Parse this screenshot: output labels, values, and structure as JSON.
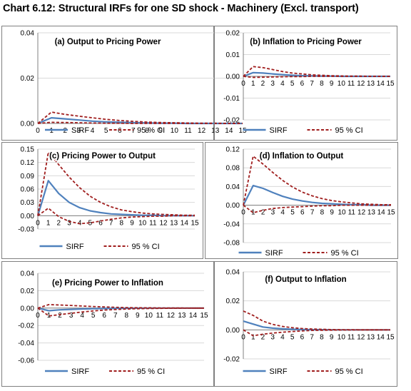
{
  "title": "Chart 6.12: Structural IRFs for one SD shock - Machinery (Excl. transport)",
  "colors": {
    "sirf": "#4f81bd",
    "ci": "#a01e1e",
    "border": "#808080",
    "grid": "#d9d9d9"
  },
  "chart_data": [
    {
      "type": "line",
      "title": "(a) Output to Pricing Power",
      "x": [
        0,
        1,
        2,
        3,
        4,
        5,
        6,
        7,
        8,
        9,
        10,
        11,
        12,
        13,
        14,
        15
      ],
      "x_tick_labels": [
        "0",
        "1",
        "2",
        "3",
        "4",
        "5",
        "6",
        "7",
        "8",
        "9",
        "10",
        "11",
        "12",
        "13",
        "14",
        "15"
      ],
      "ylim": [
        0,
        0.04
      ],
      "y_tick_labels": [
        "0.00",
        "0.02",
        "0.04"
      ],
      "grid": true,
      "legend_position": "bottom",
      "series": [
        {
          "name": "SIRF",
          "style": "solid",
          "values": [
            0,
            0.0025,
            0.002,
            0.0015,
            0.001,
            0.0007,
            0.0005,
            0.0003,
            0.0002,
            0.0001,
            0.0001,
            0,
            0,
            0,
            0,
            0
          ]
        },
        {
          "name": "95 % CI",
          "style": "dashed",
          "values": [
            0,
            0.005,
            0.004,
            0.0032,
            0.0025,
            0.0018,
            0.0013,
            0.0009,
            0.0006,
            0.0004,
            0.0003,
            0.0002,
            0.0001,
            0.0001,
            0,
            0
          ]
        },
        {
          "name": "95 % CI",
          "style": "dashed",
          "hide_legend": true,
          "values": [
            0,
            0.0005,
            0.0004,
            0.0003,
            0.0002,
            0.0001,
            0.0001,
            0,
            0,
            0,
            0,
            0,
            0,
            0,
            0,
            0
          ]
        }
      ]
    },
    {
      "type": "line",
      "title": "(b) Inflation to Pricing Power",
      "x": [
        0,
        1,
        2,
        3,
        4,
        5,
        6,
        7,
        8,
        9,
        10,
        11,
        12,
        13,
        14,
        15
      ],
      "x_tick_labels": [
        "0",
        "1",
        "2",
        "3",
        "4",
        "5",
        "6",
        "7",
        "8",
        "9",
        "10",
        "11",
        "12",
        "13",
        "14",
        "15"
      ],
      "ylim": [
        -0.02,
        0.02
      ],
      "y_tick_labels": [
        "-0.02",
        "-0.01",
        "0.00",
        "0.01",
        "0.02"
      ],
      "grid": true,
      "legend_position": "bottom",
      "series": [
        {
          "name": "SIRF",
          "style": "solid",
          "values": [
            0,
            0.0017,
            0.0015,
            0.0011,
            0.0008,
            0.0005,
            0.0003,
            0.0002,
            0.0001,
            0.0001,
            0,
            0,
            0,
            0,
            0,
            0
          ]
        },
        {
          "name": "95 % CI",
          "style": "dashed",
          "values": [
            0,
            0.0045,
            0.004,
            0.0031,
            0.0022,
            0.0015,
            0.0011,
            0.0007,
            0.0005,
            0.0003,
            0.0002,
            0.0001,
            0.0001,
            0,
            0,
            0
          ]
        },
        {
          "name": "95 % CI",
          "style": "dashed",
          "hide_legend": true,
          "values": [
            0,
            -0.0005,
            -0.0004,
            -0.0003,
            -0.0002,
            -0.0001,
            -0.0001,
            0,
            0,
            0,
            0,
            0,
            0,
            0,
            0,
            0
          ]
        }
      ]
    },
    {
      "type": "line",
      "title": "(c) Pricing Power to Output",
      "x": [
        0,
        1,
        2,
        3,
        4,
        5,
        6,
        7,
        8,
        9,
        10,
        11,
        12,
        13,
        14,
        15
      ],
      "x_tick_labels": [
        "0",
        "1",
        "2",
        "3",
        "4",
        "5",
        "6",
        "7",
        "8",
        "9",
        "10",
        "11",
        "12",
        "13",
        "14",
        "15"
      ],
      "ylim": [
        -0.03,
        0.15
      ],
      "y_tick_labels": [
        "-0.03",
        "0.00",
        "0.03",
        "0.06",
        "0.09",
        "0.12",
        "0.15"
      ],
      "grid": true,
      "legend_position": "bottom",
      "series": [
        {
          "name": "SIRF",
          "style": "solid",
          "values": [
            0,
            0.079,
            0.05,
            0.03,
            0.018,
            0.011,
            0.007,
            0.004,
            0.003,
            0.002,
            0.001,
            0.001,
            0,
            0,
            0,
            0
          ]
        },
        {
          "name": "95 % CI",
          "style": "dashed",
          "values": [
            0,
            0.143,
            0.115,
            0.087,
            0.063,
            0.044,
            0.03,
            0.02,
            0.013,
            0.009,
            0.006,
            0.004,
            0.003,
            0.002,
            0.001,
            0.001
          ]
        },
        {
          "name": "95 % CI",
          "style": "dashed",
          "hide_legend": true,
          "values": [
            0,
            0.017,
            -0.002,
            -0.013,
            -0.018,
            -0.016,
            -0.012,
            -0.008,
            -0.005,
            -0.003,
            -0.002,
            -0.001,
            -0.001,
            0,
            0,
            0
          ]
        }
      ]
    },
    {
      "type": "line",
      "title": "(d) Inflation to Output",
      "x": [
        0,
        1,
        2,
        3,
        4,
        5,
        6,
        7,
        8,
        9,
        10,
        11,
        12,
        13,
        14,
        15
      ],
      "x_tick_labels": [
        "0",
        "1",
        "2",
        "3",
        "4",
        "5",
        "6",
        "7",
        "8",
        "9",
        "10",
        "11",
        "12",
        "13",
        "14",
        "15"
      ],
      "ylim": [
        -0.08,
        0.12
      ],
      "y_tick_labels": [
        "-0.08",
        "-0.04",
        "0.00",
        "0.04",
        "0.08",
        "0.12"
      ],
      "grid": true,
      "legend_position": "bottom",
      "series": [
        {
          "name": "SIRF",
          "style": "solid",
          "values": [
            0,
            0.042,
            0.036,
            0.027,
            0.019,
            0.013,
            0.009,
            0.006,
            0.004,
            0.003,
            0.002,
            0.001,
            0.001,
            0,
            0,
            0
          ]
        },
        {
          "name": "95 % CI",
          "style": "dashed",
          "values": [
            0,
            0.105,
            0.088,
            0.07,
            0.053,
            0.039,
            0.028,
            0.02,
            0.014,
            0.01,
            0.007,
            0.005,
            0.003,
            0.002,
            0.001,
            0.001
          ]
        },
        {
          "name": "95 % CI",
          "style": "dashed",
          "hide_legend": true,
          "values": [
            0,
            -0.016,
            -0.011,
            -0.007,
            -0.005,
            -0.004,
            -0.003,
            -0.002,
            -0.001,
            -0.001,
            0,
            0,
            0,
            0,
            0,
            0
          ]
        }
      ]
    },
    {
      "type": "line",
      "title": "(e) Pricing Power to Inflation",
      "x": [
        0,
        1,
        2,
        3,
        4,
        5,
        6,
        7,
        8,
        9,
        10,
        11,
        12,
        13,
        14,
        15
      ],
      "x_tick_labels": [
        "0",
        "1",
        "2",
        "3",
        "4",
        "5",
        "6",
        "7",
        "8",
        "9",
        "10",
        "11",
        "12",
        "13",
        "14",
        "15"
      ],
      "ylim": [
        -0.06,
        0.04
      ],
      "y_tick_labels": [
        "-0.06",
        "-0.04",
        "-0.02",
        "0.00",
        "0.02",
        "0.04"
      ],
      "grid": true,
      "legend_position": "bottom",
      "series": [
        {
          "name": "SIRF",
          "style": "solid",
          "values": [
            0,
            -0.003,
            -0.002,
            -0.0015,
            -0.001,
            -0.0007,
            -0.0005,
            -0.0003,
            -0.0002,
            -0.0001,
            0,
            0,
            0,
            0,
            0,
            0
          ]
        },
        {
          "name": "95 % CI",
          "style": "dashed",
          "values": [
            0,
            0.004,
            0.0035,
            0.003,
            0.0024,
            0.0018,
            0.0013,
            0.0009,
            0.0006,
            0.0004,
            0.0003,
            0.0002,
            0.0001,
            0.0001,
            0,
            0
          ]
        },
        {
          "name": "95 % CI",
          "style": "dashed",
          "hide_legend": true,
          "values": [
            0,
            -0.009,
            -0.0075,
            -0.006,
            -0.0045,
            -0.0033,
            -0.0023,
            -0.0016,
            -0.0011,
            -0.0007,
            -0.0005,
            -0.0003,
            -0.0002,
            -0.0001,
            0,
            0
          ]
        }
      ]
    },
    {
      "type": "line",
      "title": "(f) Output to Inflation",
      "x": [
        0,
        1,
        2,
        3,
        4,
        5,
        6,
        7,
        8,
        9,
        10,
        11,
        12,
        13,
        14,
        15
      ],
      "x_tick_labels": [
        "0",
        "1",
        "2",
        "3",
        "4",
        "5",
        "6",
        "7",
        "8",
        "9",
        "10",
        "11",
        "12",
        "13",
        "14",
        "15"
      ],
      "ylim": [
        -0.02,
        0.04
      ],
      "y_tick_labels": [
        "-0.02",
        "0.00",
        "0.02",
        "0.04"
      ],
      "grid": true,
      "legend_position": "bottom",
      "series": [
        {
          "name": "SIRF",
          "style": "solid",
          "values": [
            0.006,
            0.004,
            0.002,
            0.0012,
            0.0007,
            0.0004,
            0.0002,
            0.0001,
            0.0001,
            0,
            0,
            0,
            0,
            0,
            0,
            0
          ]
        },
        {
          "name": "95 % CI",
          "style": "dashed",
          "values": [
            0.013,
            0.01,
            0.006,
            0.0038,
            0.0024,
            0.0015,
            0.0009,
            0.0006,
            0.0004,
            0.0002,
            0.0001,
            0.0001,
            0,
            0,
            0,
            0
          ]
        },
        {
          "name": "95 % CI",
          "style": "dashed",
          "hide_legend": true,
          "values": [
            0,
            -0.004,
            -0.003,
            -0.0022,
            -0.0016,
            -0.0011,
            -0.0007,
            -0.0004,
            -0.0003,
            -0.0002,
            -0.0001,
            -0.0001,
            0,
            0,
            0,
            0
          ]
        }
      ]
    }
  ]
}
